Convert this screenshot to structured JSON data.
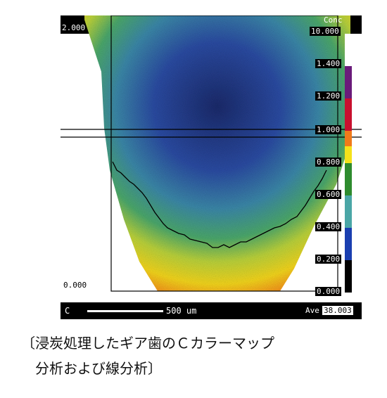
{
  "figure": {
    "top_right_label": "Conc",
    "top_left_value": "2.000",
    "bottom_left_value": "0.000",
    "element_label": "C",
    "scale_bar_label": "500 um",
    "ave_label": "Ave",
    "ave_value": "38.003",
    "colorbar": {
      "ticks": [
        "10.000",
        "1.400",
        "1.200",
        "1.000",
        "0.800",
        "0.600",
        "0.400",
        "0.200",
        "0.000"
      ],
      "colors": [
        "#ffffff",
        "#6a1b7a",
        "#c8102e",
        "#f07a1a",
        "#f5e21b",
        "#2e8b2e",
        "#4aa6a6",
        "#1a3fb0",
        "#000000"
      ]
    }
  },
  "caption": {
    "line1": "〔浸炭処理したギア歯のＣカラーマップ",
    "line2": "分析および線分析〕"
  }
}
